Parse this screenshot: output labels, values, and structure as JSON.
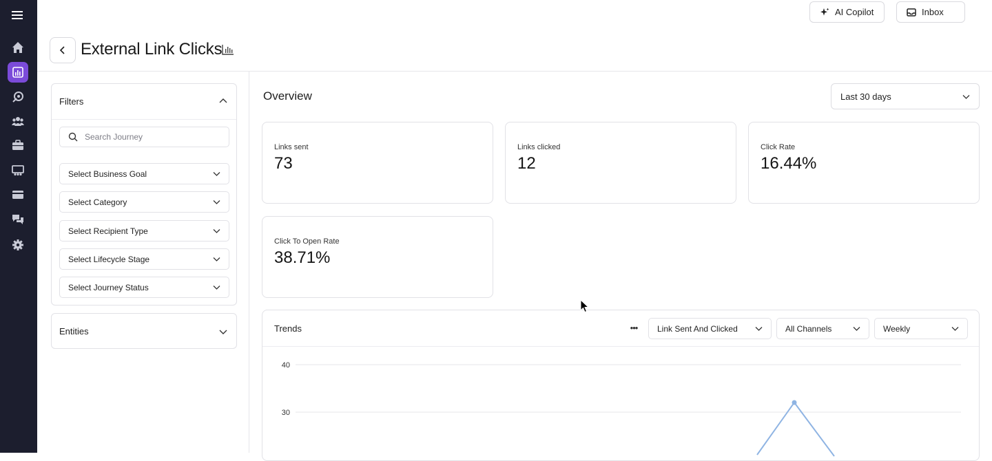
{
  "header": {
    "title": "External Link Clicks",
    "copilot_label": "AI Copilot",
    "inbox_label": "Inbox"
  },
  "sidebar": {
    "active_index": 1,
    "items": [
      {
        "icon": "home-icon"
      },
      {
        "icon": "analytics-icon"
      },
      {
        "icon": "rocket-icon"
      },
      {
        "icon": "people-icon"
      },
      {
        "icon": "briefcase-icon"
      },
      {
        "icon": "presentation-icon"
      },
      {
        "icon": "card-icon"
      },
      {
        "icon": "chat-icon"
      },
      {
        "icon": "settings-icon"
      }
    ]
  },
  "filters": {
    "title": "Filters",
    "search_placeholder": "Search Journey",
    "selects": [
      "Select Business Goal",
      "Select Category",
      "Select Recipient Type",
      "Select Lifecycle Stage",
      "Select Journey Status"
    ],
    "entities_title": "Entities"
  },
  "overview": {
    "title": "Overview",
    "date_range": "Last 30 days",
    "metrics": [
      {
        "label": "Links sent",
        "value": "73"
      },
      {
        "label": "Links clicked",
        "value": "12"
      },
      {
        "label": "Click Rate",
        "value": "16.44%"
      },
      {
        "label": "Click To Open Rate",
        "value": "38.71%"
      }
    ]
  },
  "trends": {
    "title": "Trends",
    "metric_select": "Link Sent And Clicked",
    "channel_select": "All Channels",
    "interval_select": "Weekly",
    "y_ticks": [
      "40",
      "30"
    ]
  },
  "colors": {
    "rail_bg": "#1c1e2e",
    "accent": "#7b4bd9",
    "series_line": "#8fb4e3"
  }
}
